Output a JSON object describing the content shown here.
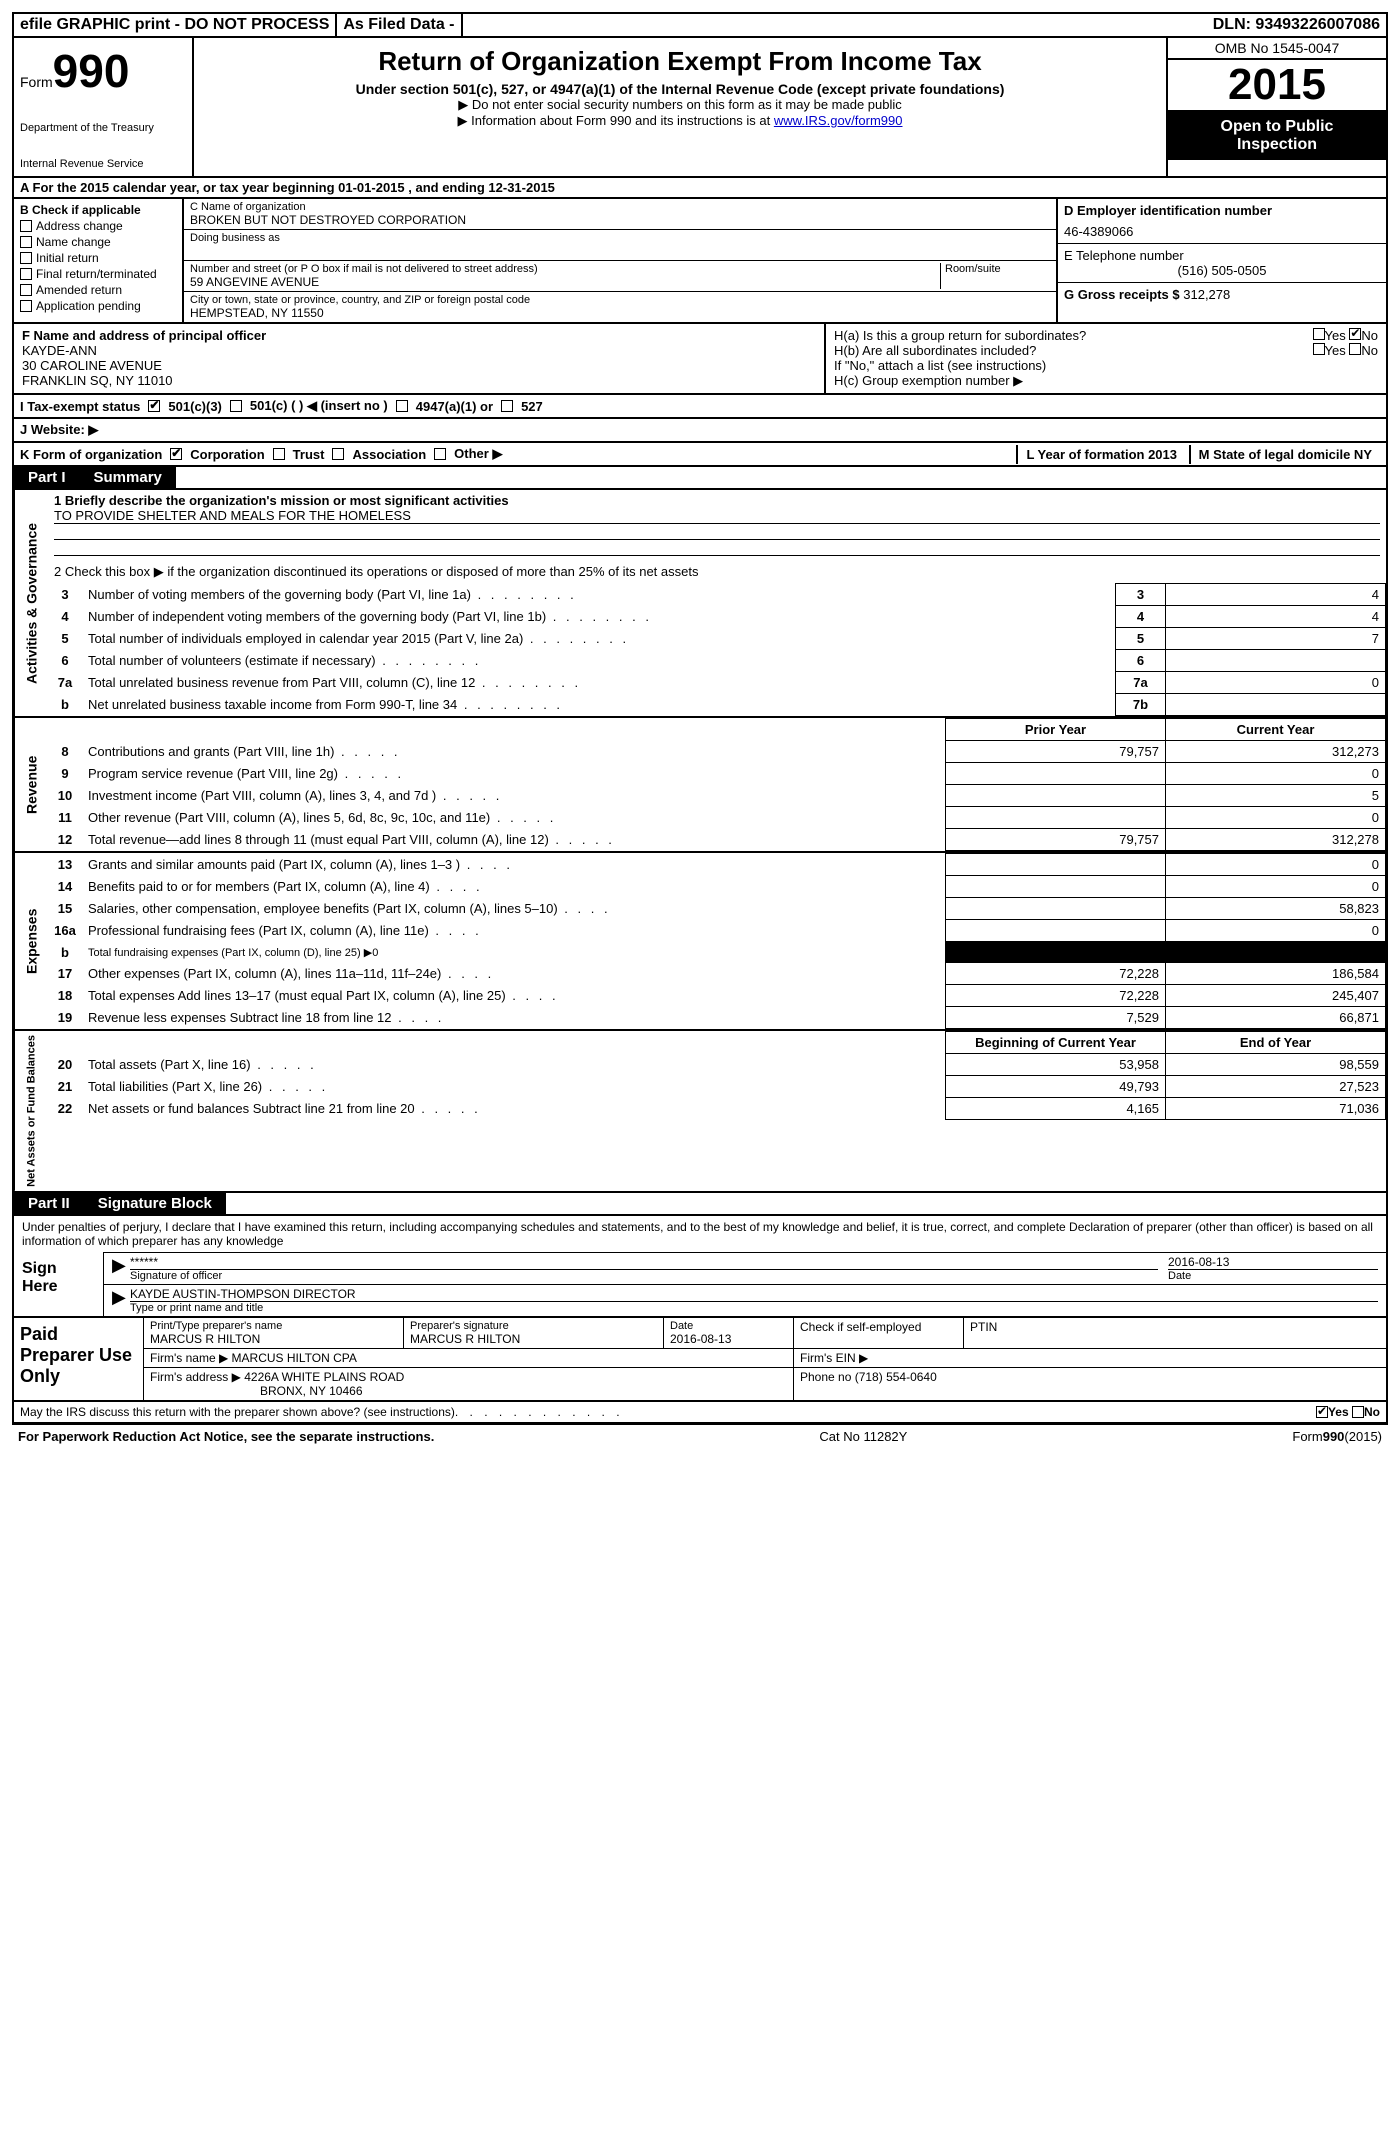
{
  "topbar": {
    "efile": "efile GRAPHIC print - DO NOT PROCESS",
    "asfiled": "As Filed Data -",
    "dln_label": "DLN:",
    "dln": "93493226007086"
  },
  "header": {
    "form_label": "Form",
    "form_num": "990",
    "dept1": "Department of the Treasury",
    "dept2": "Internal Revenue Service",
    "title": "Return of Organization Exempt From Income Tax",
    "subtitle": "Under section 501(c), 527, or 4947(a)(1) of the Internal Revenue Code (except private foundations)",
    "note1": "▶ Do not enter social security numbers on this form as it may be made public",
    "note2_pre": "▶ Information about Form 990 and its instructions is at ",
    "note2_link": "www.IRS.gov/form990",
    "omb": "OMB No 1545-0047",
    "year": "2015",
    "open1": "Open to Public",
    "open2": "Inspection"
  },
  "rowA": "A  For the 2015 calendar year, or tax year beginning 01-01-2015    , and ending 12-31-2015",
  "colB": {
    "label": "B  Check if applicable",
    "items": [
      "Address change",
      "Name change",
      "Initial return",
      "Final return/terminated",
      "Amended return",
      "Application pending"
    ]
  },
  "colC": {
    "name_label": "C Name of organization",
    "name": "BROKEN BUT NOT DESTROYED CORPORATION",
    "dba_label": "Doing business as",
    "dba": "",
    "street_label": "Number and street (or P O  box if mail is not delivered to street address)",
    "room_label": "Room/suite",
    "street": "59 ANGEVINE AVENUE",
    "city_label": "City or town, state or province, country, and ZIP or foreign postal code",
    "city": "HEMPSTEAD, NY  11550",
    "officer_label": "F  Name and address of principal officer",
    "officer_name": "KAYDE-ANN",
    "officer_addr1": "30 CAROLINE AVENUE",
    "officer_addr2": "FRANKLIN SQ, NY  11010"
  },
  "colD": {
    "ein_label": "D Employer identification number",
    "ein": "46-4389066",
    "tel_label": "E Telephone number",
    "tel": "(516) 505-0505",
    "gross_label": "G Gross receipts $",
    "gross": "312,278"
  },
  "colH": {
    "ha": "H(a)  Is this a group return for subordinates?",
    "hb": "H(b)  Are all subordinates included?",
    "hno": "If \"No,\" attach a list  (see instructions)",
    "hc": "H(c)  Group exemption number ▶",
    "yes": "Yes",
    "no": "No"
  },
  "rowI": {
    "label": "I   Tax-exempt status",
    "opts": [
      "501(c)(3)",
      "501(c) (  ) ◀ (insert no )",
      "4947(a)(1) or",
      "527"
    ]
  },
  "rowJ": "J   Website: ▶",
  "rowK": {
    "label": "K Form of organization",
    "opts": [
      "Corporation",
      "Trust",
      "Association",
      "Other ▶"
    ],
    "year_label": "L Year of formation  2013",
    "state_label": "M State of legal domicile  NY"
  },
  "partI": {
    "part": "Part I",
    "title": "Summary",
    "side_gov": "Activities & Governance",
    "side_rev": "Revenue",
    "side_exp": "Expenses",
    "side_net": "Net Assets or Fund Balances",
    "l1a": "1 Briefly describe the organization's mission or most significant activities",
    "l1b": "TO PROVIDE SHELTER AND MEALS FOR THE HOMELESS",
    "l2": "2  Check this box ▶     if the organization discontinued its operations or disposed of more than 25% of its net assets",
    "lines_gov": [
      {
        "n": "3",
        "d": "Number of voting members of the governing body (Part VI, line 1a)",
        "k": "3",
        "v": "4"
      },
      {
        "n": "4",
        "d": "Number of independent voting members of the governing body (Part VI, line 1b)",
        "k": "4",
        "v": "4"
      },
      {
        "n": "5",
        "d": "Total number of individuals employed in calendar year 2015 (Part V, line 2a)",
        "k": "5",
        "v": "7"
      },
      {
        "n": "6",
        "d": "Total number of volunteers (estimate if necessary)",
        "k": "6",
        "v": ""
      },
      {
        "n": "7a",
        "d": "Total unrelated business revenue from Part VIII, column (C), line 12",
        "k": "7a",
        "v": "0"
      },
      {
        "n": "b",
        "d": "Net unrelated business taxable income from Form 990-T, line 34",
        "k": "7b",
        "v": ""
      }
    ],
    "col_prior": "Prior Year",
    "col_current": "Current Year",
    "lines_rev": [
      {
        "n": "8",
        "d": "Contributions and grants (Part VIII, line 1h)",
        "p": "79,757",
        "c": "312,273"
      },
      {
        "n": "9",
        "d": "Program service revenue (Part VIII, line 2g)",
        "p": "",
        "c": "0"
      },
      {
        "n": "10",
        "d": "Investment income (Part VIII, column (A), lines 3, 4, and 7d )",
        "p": "",
        "c": "5"
      },
      {
        "n": "11",
        "d": "Other revenue (Part VIII, column (A), lines 5, 6d, 8c, 9c, 10c, and 11e)",
        "p": "",
        "c": "0"
      },
      {
        "n": "12",
        "d": "Total revenue—add lines 8 through 11 (must equal Part VIII, column (A), line 12)",
        "p": "79,757",
        "c": "312,278"
      }
    ],
    "lines_exp": [
      {
        "n": "13",
        "d": "Grants and similar amounts paid (Part IX, column (A), lines 1–3 )",
        "p": "",
        "c": "0"
      },
      {
        "n": "14",
        "d": "Benefits paid to or for members (Part IX, column (A), line 4)",
        "p": "",
        "c": "0"
      },
      {
        "n": "15",
        "d": "Salaries, other compensation, employee benefits (Part IX, column (A), lines 5–10)",
        "p": "",
        "c": "58,823"
      },
      {
        "n": "16a",
        "d": "Professional fundraising fees (Part IX, column (A), line 11e)",
        "p": "",
        "c": "0"
      },
      {
        "n": "b",
        "d": "Total fundraising expenses (Part IX, column (D), line 25) ▶0",
        "p": "BLACK",
        "c": "BLACK"
      },
      {
        "n": "17",
        "d": "Other expenses (Part IX, column (A), lines 11a–11d, 11f–24e)",
        "p": "72,228",
        "c": "186,584"
      },
      {
        "n": "18",
        "d": "Total expenses  Add lines 13–17 (must equal Part IX, column (A), line 25)",
        "p": "72,228",
        "c": "245,407"
      },
      {
        "n": "19",
        "d": "Revenue less expenses  Subtract line 18 from line 12",
        "p": "7,529",
        "c": "66,871"
      }
    ],
    "col_begin": "Beginning of Current Year",
    "col_end": "End of Year",
    "lines_net": [
      {
        "n": "20",
        "d": "Total assets (Part X, line 16)",
        "p": "53,958",
        "c": "98,559"
      },
      {
        "n": "21",
        "d": "Total liabilities (Part X, line 26)",
        "p": "49,793",
        "c": "27,523"
      },
      {
        "n": "22",
        "d": "Net assets or fund balances  Subtract line 21 from line 20",
        "p": "4,165",
        "c": "71,036"
      }
    ]
  },
  "partII": {
    "part": "Part II",
    "title": "Signature Block",
    "decl": "Under penalties of perjury, I declare that I have examined this return, including accompanying schedules and statements, and to the best of my knowledge and belief, it is true, correct, and complete  Declaration of preparer (other than officer) is based on all information of which preparer has any knowledge",
    "sign_here": "Sign Here",
    "sig_stars": "******",
    "sig_officer_label": "Signature of officer",
    "sig_date": "2016-08-13",
    "sig_date_label": "Date",
    "sig_name": "KAYDE AUSTIN-THOMPSON  DIRECTOR",
    "sig_name_label": "Type or print name and title",
    "paid_label": "Paid Preparer Use Only",
    "prep_name_label": "Print/Type preparer's name",
    "prep_name": "MARCUS R HILTON",
    "prep_sig_label": "Preparer's signature",
    "prep_sig": "MARCUS R HILTON",
    "prep_date_label": "Date",
    "prep_date": "2016-08-13",
    "prep_self_label": "Check      if self-employed",
    "prep_ptin_label": "PTIN",
    "firm_name_label": "Firm's name     ▶",
    "firm_name": "MARCUS HILTON CPA",
    "firm_ein_label": "Firm's EIN ▶",
    "firm_addr_label": "Firm's address ▶",
    "firm_addr1": "4226A WHITE PLAINS ROAD",
    "firm_addr2": "BRONX, NY  10466",
    "firm_phone_label": "Phone no  (718) 554-0640",
    "discuss": "May the IRS discuss this return with the preparer shown above? (see instructions)",
    "discuss_yes": "Yes",
    "discuss_no": "No"
  },
  "footer": {
    "left": "For Paperwork Reduction Act Notice, see the separate instructions.",
    "mid": "Cat No  11282Y",
    "right": "Form990(2015)"
  }
}
